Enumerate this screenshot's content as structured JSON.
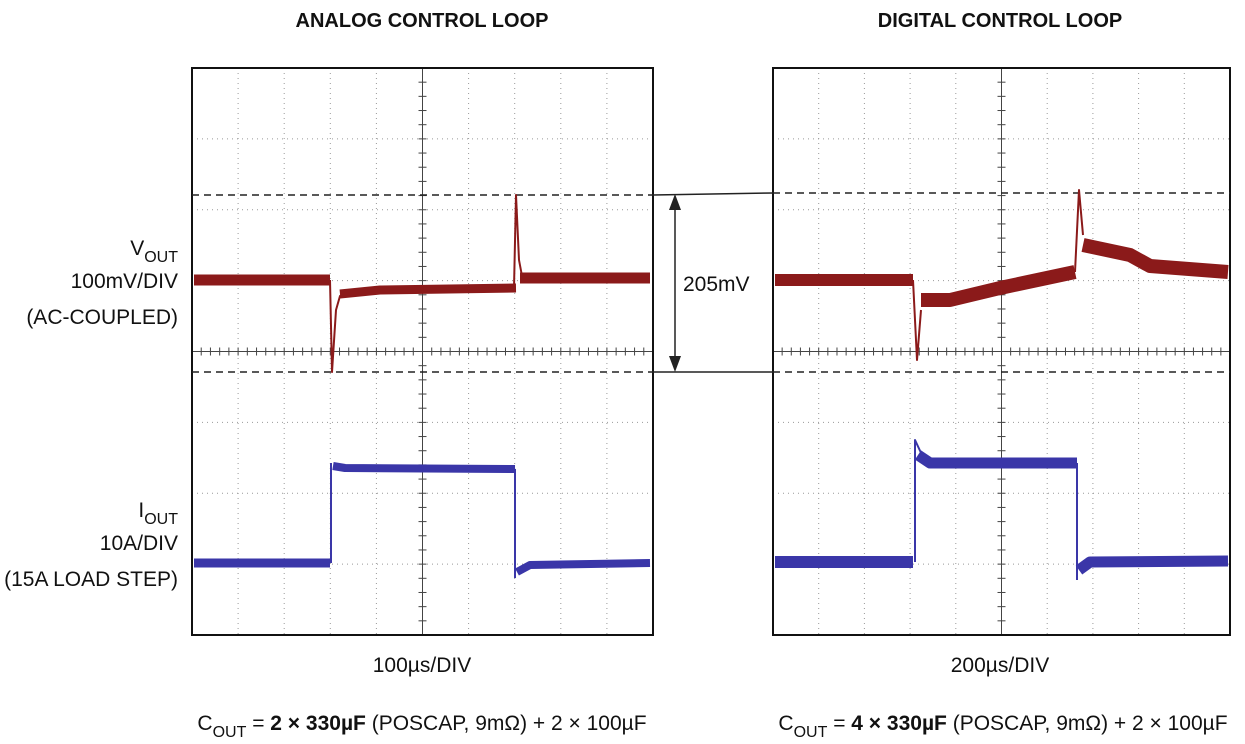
{
  "panels": [
    {
      "title": "ANALOG CONTROL LOOP",
      "timebase": "100µs/DIV",
      "caption": {
        "symbol": "C",
        "subscript": "OUT",
        "equals": " = ",
        "bold": "2 × 330µF",
        "rest": " (POSCAP, 9mΩ) + 2 × 100µF"
      }
    },
    {
      "title": "DIGITAL CONTROL LOOP",
      "timebase": "200µs/DIV",
      "caption": {
        "symbol": "C",
        "subscript": "OUT",
        "equals": " = ",
        "bold": "4 × 330µF",
        "rest": " (POSCAP, 9mΩ) + 2 × 100µF"
      }
    }
  ],
  "labels": {
    "vout": {
      "symbol": "V",
      "subscript": "OUT",
      "scale": "100mV/DIV",
      "note": "(AC-COUPLED)"
    },
    "iout": {
      "symbol": "I",
      "subscript": "OUT",
      "scale": "10A/DIV",
      "note": "(15A LOAD STEP)"
    }
  },
  "annotation": "205mV"
}
